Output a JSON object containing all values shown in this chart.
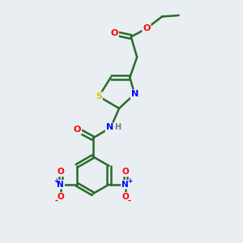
{
  "background_color": "#e8eef2",
  "bond_color": "#2a6a2a",
  "atom_colors": {
    "O": "#ff0000",
    "N": "#0000ff",
    "S": "#cccc00",
    "H": "#777777",
    "C": "#000000"
  },
  "bond_width": 1.8,
  "figsize": [
    3.0,
    3.0
  ],
  "dpi": 100
}
